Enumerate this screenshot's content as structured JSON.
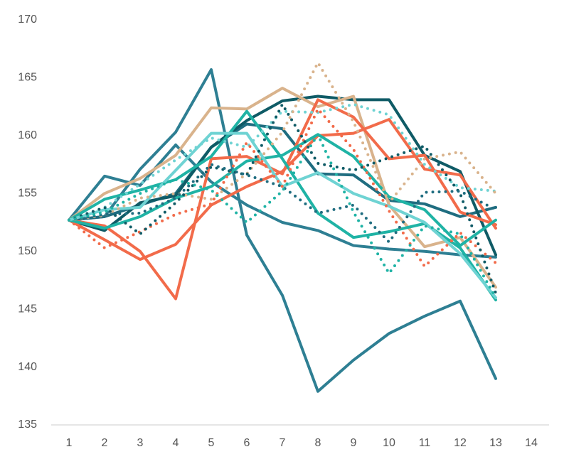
{
  "chart_data": {
    "type": "line",
    "x": [
      1,
      2,
      3,
      4,
      5,
      6,
      7,
      8,
      9,
      10,
      11,
      12,
      13
    ],
    "xlim": [
      0.5,
      14.5
    ],
    "xticks": [
      1,
      2,
      3,
      4,
      5,
      6,
      7,
      8,
      9,
      10,
      11,
      12,
      13,
      14
    ],
    "ylim": [
      135,
      170
    ],
    "yticks": [
      135,
      140,
      145,
      150,
      155,
      160,
      165,
      170
    ],
    "grid": false,
    "series": [
      {
        "color": "#2e7f93",
        "dash": "solid",
        "values": [
          152.7,
          153.0,
          157.1,
          160.3,
          165.7,
          151.4,
          146.2,
          137.9,
          140.6,
          142.9,
          144.4,
          145.7,
          139.0
        ]
      },
      {
        "color": "#2e7f93",
        "dash": "solid",
        "values": [
          152.7,
          156.5,
          155.7,
          159.2,
          156.0,
          154.0,
          152.5,
          151.8,
          150.5,
          150.2,
          150.0,
          149.7,
          149.5
        ]
      },
      {
        "color": "#1f6d80",
        "dash": "solid",
        "values": [
          152.7,
          153.0,
          154.0,
          155.0,
          159.0,
          161.0,
          160.6,
          156.7,
          156.6,
          154.4,
          154.1,
          153.0,
          153.8
        ]
      },
      {
        "color": "#0f5b66",
        "dash": "solid",
        "values": [
          152.7,
          151.8,
          154.2,
          154.8,
          159.0,
          161.3,
          163.0,
          163.4,
          163.1,
          163.1,
          158.3,
          156.9,
          149.7
        ]
      },
      {
        "color": "#d9b38c",
        "dash": "solid",
        "values": [
          152.7,
          155.0,
          156.3,
          158.3,
          162.4,
          162.3,
          164.1,
          162.5,
          163.4,
          154.0,
          150.4,
          151.2,
          146.9
        ]
      },
      {
        "color": "#f26b4a",
        "dash": "solid",
        "values": [
          152.7,
          151.0,
          149.3,
          150.6,
          154.0,
          155.6,
          156.9,
          160.0,
          160.2,
          161.4,
          157.1,
          156.6,
          152.0
        ]
      },
      {
        "color": "#f26b4a",
        "dash": "solid",
        "values": [
          152.7,
          152.2,
          150.0,
          145.9,
          158.0,
          158.2,
          156.7,
          163.1,
          161.6,
          158.0,
          158.3,
          153.4,
          152.3
        ]
      },
      {
        "color": "#1fb3a5",
        "dash": "solid",
        "values": [
          152.7,
          154.5,
          155.3,
          156.2,
          158.2,
          162.1,
          158.0,
          153.3,
          151.2,
          151.7,
          152.4,
          150.3,
          145.8
        ]
      },
      {
        "color": "#1fb3a5",
        "dash": "solid",
        "values": [
          152.7,
          152.0,
          153.0,
          154.6,
          155.6,
          157.8,
          158.3,
          160.1,
          158.2,
          154.7,
          153.6,
          150.5,
          152.7
        ]
      },
      {
        "color": "#6fd3d3",
        "dash": "solid",
        "values": [
          152.7,
          153.6,
          153.8,
          157.0,
          160.2,
          160.2,
          155.6,
          156.8,
          155.0,
          153.9,
          152.5,
          149.8,
          146.0
        ]
      },
      {
        "color": "#6fd3d3",
        "dash": "dotted",
        "values": [
          152.7,
          153.8,
          155.8,
          157.9,
          159.8,
          159.0,
          162.1,
          162.0,
          162.7,
          161.8,
          157.5,
          155.5,
          155.2
        ]
      },
      {
        "color": "#d9b38c",
        "dash": "dotted",
        "values": [
          152.7,
          153.1,
          154.6,
          155.0,
          154.5,
          156.7,
          160.3,
          166.3,
          161.2,
          154.2,
          158.0,
          158.6,
          155.0
        ]
      },
      {
        "color": "#f26b4a",
        "dash": "dotted",
        "values": [
          152.7,
          150.3,
          151.7,
          153.2,
          154.1,
          159.4,
          155.6,
          162.3,
          158.8,
          153.5,
          148.7,
          151.6,
          149.0
        ]
      },
      {
        "color": "#0f5b66",
        "dash": "dotted",
        "values": [
          152.7,
          153.8,
          151.5,
          154.2,
          157.3,
          156.6,
          162.7,
          157.6,
          157.0,
          158.1,
          159.1,
          155.0,
          146.4
        ]
      },
      {
        "color": "#1f6d80",
        "dash": "dotted",
        "values": [
          152.7,
          153.2,
          153.3,
          154.6,
          157.5,
          156.6,
          155.6,
          153.3,
          154.0,
          150.8,
          155.1,
          155.2,
          153.6
        ]
      },
      {
        "color": "#1fb3a5",
        "dash": "dotted",
        "values": [
          152.7,
          153.4,
          155.0,
          156.2,
          155.3,
          152.5,
          155.2,
          160.1,
          153.4,
          148.1,
          152.2,
          151.5,
          146.0
        ]
      }
    ]
  }
}
